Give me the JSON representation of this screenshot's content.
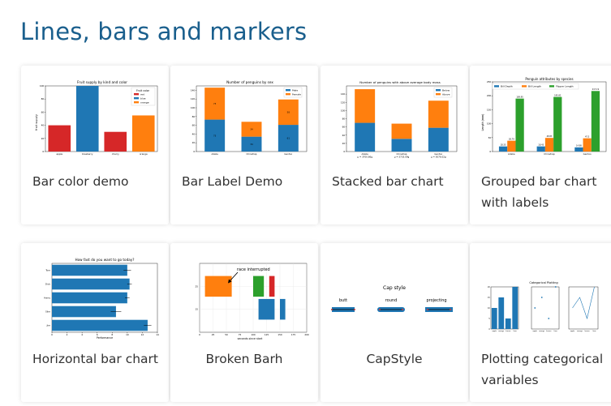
{
  "page": {
    "title": "Lines, bars and markers"
  },
  "colors": {
    "blue": "#1f77b4",
    "orange": "#ff7f0e",
    "green": "#2ca02c",
    "red": "#d62728",
    "title": "#1a5f8d"
  },
  "cards": [
    {
      "label": "Bar color demo",
      "chart_data": {
        "type": "bar",
        "title": "Fruit supply by kind and color",
        "ylabel": "fruit supply",
        "categories": [
          "apple",
          "blueberry",
          "cherry",
          "orange"
        ],
        "values": [
          40,
          100,
          30,
          55
        ],
        "bar_colors": [
          "#d62728",
          "#1f77b4",
          "#d62728",
          "#ff7f0e"
        ],
        "ylim": [
          0,
          100
        ],
        "yticks": [
          0,
          20,
          40,
          60,
          80,
          100
        ],
        "legend_title": "Fruit color",
        "legend": [
          {
            "name": "red",
            "color": "#d62728"
          },
          {
            "name": "blue",
            "color": "#1f77b4"
          },
          {
            "name": "orange",
            "color": "#ff7f0e"
          }
        ]
      }
    },
    {
      "label": "Bar Label Demo",
      "chart_data": {
        "type": "bar",
        "title": "Number of penguins by sex",
        "categories": [
          "Adelie",
          "Chinstrap",
          "Gentoo"
        ],
        "series": [
          {
            "name": "Male",
            "values": [
              73,
              34,
              61
            ],
            "color": "#1f77b4"
          },
          {
            "name": "Female",
            "values": [
              73,
              34,
              58
            ],
            "color": "#ff7f0e"
          }
        ],
        "stacked": true,
        "ylim": [
          0,
          150
        ],
        "yticks": [
          0,
          20,
          40,
          60,
          80,
          100,
          120,
          140
        ]
      }
    },
    {
      "label": "Stacked bar chart",
      "chart_data": {
        "type": "bar",
        "title": "Number of penguins with above average body mass",
        "categories": [
          "Adelie\nμ = 3700.66g",
          "Chinstrap\nμ = 3733.09g",
          "Gentoo\nμ = 5076.02g"
        ],
        "series": [
          {
            "name": "Below",
            "values": [
              70,
              31,
              58
            ],
            "color": "#1f77b4"
          },
          {
            "name": "Above",
            "values": [
              82,
              37,
              66
            ],
            "color": "#ff7f0e"
          }
        ],
        "stacked": true,
        "ylim": [
          0,
          160
        ],
        "yticks": [
          0,
          20,
          40,
          60,
          80,
          100,
          120,
          140
        ]
      }
    },
    {
      "label": "Grouped bar chart with labels",
      "chart_data": {
        "type": "bar",
        "title": "Penguin attributes by species",
        "ylabel": "Length (mm)",
        "categories": [
          "Adelie",
          "Chinstrap",
          "Gentoo"
        ],
        "series": [
          {
            "name": "Bill Depth",
            "values": [
              18.35,
              18.43,
              14.98
            ],
            "color": "#1f77b4"
          },
          {
            "name": "Bill Length",
            "values": [
              38.79,
              48.83,
              47.5
            ],
            "color": "#ff7f0e"
          },
          {
            "name": "Flipper Length",
            "values": [
              189.95,
              195.82,
              217.19
            ],
            "color": "#2ca02c"
          }
        ],
        "ylim": [
          0,
          250
        ],
        "yticks": [
          0,
          50,
          100,
          150,
          200,
          250
        ]
      }
    },
    {
      "label": "Horizontal bar chart",
      "chart_data": {
        "type": "bar",
        "orientation": "horizontal",
        "title": "How fast do you want to go today?",
        "xlabel": "Performance",
        "categories": [
          "Tom",
          "Dick",
          "Harry",
          "Slim",
          "Jim"
        ],
        "values": [
          10,
          10.3,
          10,
          8.5,
          12.7
        ],
        "errors": [
          0.5,
          0.3,
          0.3,
          0.7,
          0.5
        ],
        "xlim": [
          0,
          14
        ],
        "xticks": [
          0,
          2,
          4,
          6,
          8,
          10,
          12,
          14
        ]
      }
    },
    {
      "label": "Broken Barh",
      "chart_data": {
        "type": "bar",
        "orientation": "broken-horizontal",
        "xlabel": "seconds since start",
        "annotation": "race interrupted",
        "xlim": [
          0,
          200
        ],
        "xticks": [
          0,
          25,
          50,
          75,
          100,
          125,
          150,
          175,
          200
        ],
        "yticks": [
          15,
          25
        ],
        "rows": [
          {
            "y": 25,
            "segments": [
              [
                10,
                50,
                "#ff7f0e"
              ],
              [
                100,
                20,
                "#2ca02c"
              ],
              [
                130,
                10,
                "#d62728"
              ]
            ]
          },
          {
            "y": 15,
            "segments": [
              [
                110,
                30,
                "#1f77b4"
              ],
              [
                150,
                10,
                "#1f77b4"
              ]
            ]
          }
        ]
      }
    },
    {
      "label": "CapStyle",
      "diagram": {
        "title": "Cap style",
        "styles": [
          "butt",
          "round",
          "projecting"
        ]
      }
    },
    {
      "label": "Plotting categorical variables",
      "chart_data": [
        {
          "type": "bar",
          "categories": [
            "apple",
            "orange",
            "lemon",
            "lime"
          ],
          "values": [
            10,
            15,
            5,
            20
          ],
          "ylim": [
            0,
            20
          ]
        },
        {
          "type": "scatter",
          "title": "Categorical Plotting",
          "categories": [
            "apple",
            "orange",
            "lemon",
            "lime"
          ],
          "values": [
            10,
            15,
            5,
            20
          ]
        },
        {
          "type": "line",
          "categories": [
            "apple",
            "orange",
            "lemon",
            "lime"
          ],
          "values": [
            10,
            15,
            5,
            20
          ]
        }
      ]
    }
  ]
}
